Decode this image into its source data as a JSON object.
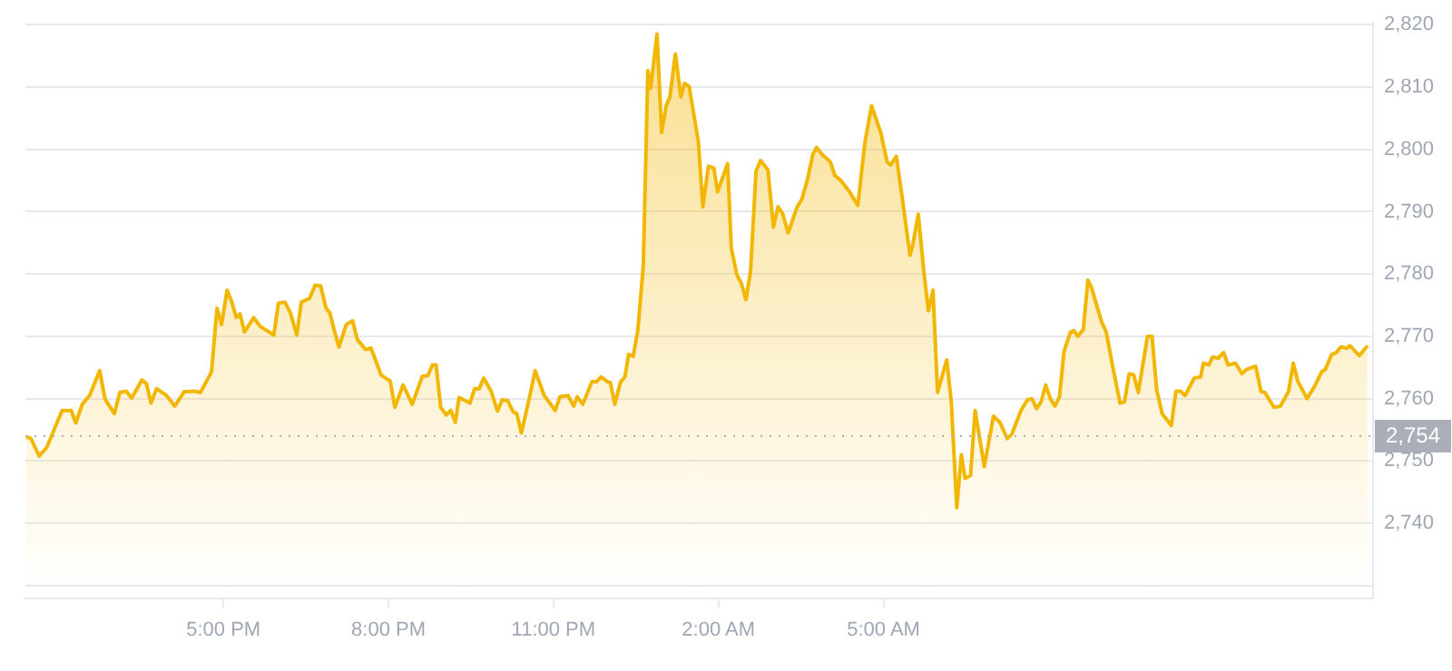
{
  "chart_data": {
    "type": "area",
    "x": [
      "--01-01T13:25",
      "--01-01T13:30",
      "--01-01T13:39",
      "--01-01T13:47",
      "--01-01T14:04",
      "--01-01T14:14",
      "--01-01T14:19",
      "--01-01T14:26",
      "--01-01T14:34",
      "--01-01T14:45",
      "--01-01T14:51",
      "--01-01T15:01",
      "--01-01T15:07",
      "--01-01T15:14",
      "--01-01T15:20",
      "--01-01T15:31",
      "--01-01T15:36",
      "--01-01T15:41",
      "--01-01T15:47",
      "--01-01T15:58",
      "--01-01T16:07",
      "--01-01T16:17",
      "--01-01T16:28",
      "--01-01T16:35",
      "--01-01T16:47",
      "--01-01T16:53",
      "--01-01T16:58",
      "--01-01T17:04",
      "--01-01T17:09",
      "--01-01T17:14",
      "--01-01T17:18",
      "--01-01T17:23",
      "--01-01T17:33",
      "--01-01T17:40",
      "--01-01T17:55",
      "--01-01T18:00",
      "--01-01T18:07",
      "--01-01T18:13",
      "--01-01T18:20",
      "--01-01T18:25",
      "--01-01T18:34",
      "--01-01T18:40",
      "--01-01T18:46",
      "--01-01T18:52",
      "--01-01T18:56",
      "--01-01T19:01",
      "--01-01T19:06",
      "--01-01T19:14",
      "--01-01T19:21",
      "--01-01T19:26",
      "--01-01T19:35",
      "--01-01T19:41",
      "--01-01T19:52",
      "--01-01T20:02",
      "--01-01T20:07",
      "--01-01T20:16",
      "--01-01T20:26",
      "--01-01T20:37",
      "--01-01T20:43",
      "--01-01T20:48",
      "--01-01T20:52",
      "--01-01T20:57",
      "--01-01T21:03",
      "--01-01T21:08",
      "--01-01T21:13",
      "--01-01T21:17",
      "--01-01T21:29",
      "--01-01T21:34",
      "--01-01T21:39",
      "--01-01T21:44",
      "--01-01T21:52",
      "--01-01T21:59",
      "--01-01T22:04",
      "--01-01T22:10",
      "--01-01T22:16",
      "--01-01T22:20",
      "--01-01T22:25",
      "--01-01T22:34",
      "--01-01T22:40",
      "--01-01T22:50",
      "--01-01T23:02",
      "--01-01T23:07",
      "--01-01T23:16",
      "--01-01T23:22",
      "--01-01T23:26",
      "--01-01T23:32",
      "--01-01T23:42",
      "--01-01T23:47",
      "--01-01T23:52",
      "--01-01T23:59",
      "--01-02T00:02",
      "--01-02T00:07",
      "--01-02T00:13",
      "--01-02T00:18",
      "--01-02T00:22",
      "--01-02T00:27",
      "--01-02T00:32",
      "--01-02T00:38",
      "--01-02T00:43",
      "--01-02T00:46",
      "--01-02T00:53",
      "--01-02T00:58",
      "--01-02T01:03",
      "--01-02T01:07",
      "--01-02T01:13",
      "--01-02T01:19",
      "--01-02T01:23",
      "--01-02T01:28",
      "--01-02T01:38",
      "--01-02T01:43",
      "--01-02T01:49",
      "--01-02T01:55",
      "--01-02T01:59",
      "--01-02T02:10",
      "--01-02T02:14",
      "--01-02T02:20",
      "--01-02T02:25",
      "--01-02T02:30",
      "--01-02T02:35",
      "--01-02T02:41",
      "--01-02T02:46",
      "--01-02T02:54",
      "--01-02T03:00",
      "--01-02T03:05",
      "--01-02T03:10",
      "--01-02T03:16",
      "--01-02T03:26",
      "--01-02T03:31",
      "--01-02T03:37",
      "--01-02T03:43",
      "--01-02T03:47",
      "--01-02T03:53",
      "--01-02T04:02",
      "--01-02T04:07",
      "--01-02T04:13",
      "--01-02T04:23",
      "--01-02T04:32",
      "--01-02T04:40",
      "--01-02T04:47",
      "--01-02T04:57",
      "--01-02T05:04",
      "--01-02T05:08",
      "--01-02T05:14",
      "--01-02T05:20",
      "--01-02T05:29",
      "--01-02T05:32",
      "--01-02T05:38",
      "--01-02T05:44",
      "--01-02T05:49",
      "--01-02T05:54",
      "--01-02T05:59",
      "--01-02T06:09",
      "--01-02T06:14",
      "--01-02T06:20",
      "--01-02T06:25",
      "--01-02T06:29",
      "--01-02T06:35",
      "--01-02T06:40",
      "--01-02T06:50",
      "--01-02T07:00",
      "--01-02T07:07",
      "--01-02T07:15",
      "--01-02T07:20",
      "--01-02T07:30",
      "--01-02T07:37",
      "--01-02T07:42",
      "--01-02T07:47",
      "--01-02T07:52",
      "--01-02T07:57",
      "--01-02T08:02",
      "--01-02T08:07",
      "--01-02T08:12",
      "--01-02T08:17",
      "--01-02T08:24",
      "--01-02T08:28",
      "--01-02T08:32",
      "--01-02T08:38",
      "--01-02T08:43",
      "--01-02T08:47",
      "--01-02T08:58",
      "--01-02T09:03",
      "--01-02T09:10",
      "--01-02T09:18",
      "--01-02T09:23",
      "--01-02T09:28",
      "--01-02T09:33",
      "--01-02T09:38",
      "--01-02T09:48",
      "--01-02T09:53",
      "--01-02T09:58",
      "--01-02T10:04",
      "--01-02T10:14",
      "--01-02T10:19",
      "--01-02T10:24",
      "--01-02T10:29",
      "--01-02T10:39",
      "--01-02T10:46",
      "--01-02T10:49",
      "--01-02T10:55",
      "--01-02T10:59",
      "--01-02T11:05",
      "--01-02T11:11",
      "--01-02T11:16",
      "--01-02T11:24",
      "--01-02T11:31",
      "--01-02T11:36",
      "--01-02T11:46",
      "--01-02T11:52",
      "--01-02T11:56",
      "--01-02T12:06",
      "--01-02T12:13",
      "--01-02T12:22",
      "--01-02T12:27",
      "--01-02T12:32",
      "--01-02T12:42",
      "--01-02T12:50",
      "--01-02T12:58",
      "--01-02T13:02",
      "--01-02T13:09",
      "--01-02T13:14",
      "--01-02T13:19",
      "--01-02T13:25",
      "--01-02T13:29",
      "--01-02T13:39",
      "--01-02T13:48"
    ],
    "series": [
      {
        "color": "#f2b705",
        "values": [
          2753.9,
          2753.6,
          2750.8,
          2752.1,
          2758.1,
          2758.1,
          2756.1,
          2759.1,
          2760.5,
          2764.5,
          2759.9,
          2757.6,
          2761.0,
          2761.2,
          2760.1,
          2763.0,
          2762.4,
          2759.3,
          2761.6,
          2760.5,
          2758.8,
          2761.1,
          2761.2,
          2761.0,
          2764.3,
          2774.5,
          2771.9,
          2777.4,
          2775.6,
          2773.0,
          2773.6,
          2770.7,
          2773.0,
          2771.6,
          2770.2,
          2775.3,
          2775.5,
          2773.8,
          2770.2,
          2775.5,
          2776.1,
          2778.2,
          2778.1,
          2774.5,
          2773.8,
          2770.9,
          2768.3,
          2771.9,
          2772.5,
          2769.5,
          2767.9,
          2768.1,
          2763.8,
          2762.8,
          2758.6,
          2762.2,
          2759.1,
          2763.6,
          2763.7,
          2765.4,
          2765.4,
          2758.6,
          2757.4,
          2758.1,
          2756.2,
          2760.2,
          2759.3,
          2761.6,
          2761.6,
          2763.3,
          2761.2,
          2758.0,
          2759.8,
          2759.7,
          2757.9,
          2757.6,
          2754.5,
          2760.3,
          2764.5,
          2760.5,
          2758.1,
          2760.3,
          2760.5,
          2758.8,
          2760.3,
          2759.1,
          2762.7,
          2762.7,
          2763.5,
          2762.7,
          2762.6,
          2759.1,
          2762.6,
          2763.5,
          2767.1,
          2766.8,
          2770.9,
          2781.3,
          2812.6,
          2809.8,
          2818.5,
          2802.7,
          2807.0,
          2808.4,
          2815.3,
          2808.4,
          2810.6,
          2810.1,
          2801.3,
          2790.8,
          2797.3,
          2797.0,
          2793.2,
          2797.7,
          2784.2,
          2779.9,
          2778.5,
          2775.9,
          2780.4,
          2796.5,
          2798.2,
          2796.7,
          2787.5,
          2790.8,
          2789.7,
          2786.6,
          2790.8,
          2792.0,
          2795.1,
          2799.2,
          2800.3,
          2799.2,
          2798.0,
          2795.8,
          2795.1,
          2793.2,
          2791.0,
          2801.3,
          2807.0,
          2802.7,
          2798.0,
          2797.5,
          2798.9,
          2792.7,
          2783.0,
          2784.7,
          2789.6,
          2780.4,
          2774.1,
          2777.4,
          2761.0,
          2766.2,
          2759.5,
          2742.5,
          2751.0,
          2747.2,
          2747.7,
          2758.1,
          2749.1,
          2757.2,
          2756.2,
          2753.6,
          2754.3,
          2758.1,
          2759.8,
          2760.0,
          2758.4,
          2759.5,
          2762.2,
          2760.0,
          2758.8,
          2760.3,
          2767.6,
          2770.7,
          2770.9,
          2770.0,
          2771.1,
          2779.0,
          2777.8,
          2772.3,
          2770.7,
          2765.2,
          2759.3,
          2759.5,
          2764.0,
          2763.8,
          2761.0,
          2770.0,
          2770.0,
          2761.4,
          2757.6,
          2755.7,
          2761.2,
          2761.2,
          2760.5,
          2763.3,
          2763.5,
          2765.7,
          2765.4,
          2766.7,
          2766.5,
          2767.4,
          2765.4,
          2765.7,
          2764.0,
          2764.7,
          2765.2,
          2761.1,
          2761.0,
          2758.6,
          2758.8,
          2761.2,
          2765.7,
          2762.8,
          2760.0,
          2761.9,
          2764.3,
          2764.7,
          2767.1,
          2767.4,
          2768.3,
          2768.1,
          2768.5,
          2766.9,
          2768.5
        ]
      }
    ],
    "xlim": [
      "--01-01T13:24",
      "--01-02T13:54"
    ],
    "xticks": [
      {
        "value": "--01-01T17:00",
        "label": "5:00 PM"
      },
      {
        "value": "--01-01T20:00",
        "label": "8:00 PM"
      },
      {
        "value": "--01-01T23:00",
        "label": "11:00 PM"
      },
      {
        "value": "--01-02T02:00",
        "label": "2:00 AM"
      },
      {
        "value": "--01-02T05:00",
        "label": "5:00 AM"
      }
    ],
    "ylim": [
      2728,
      2820.3
    ],
    "yticks": [
      {
        "value": 2730,
        "label": null
      },
      {
        "value": 2740,
        "label": "2,740"
      },
      {
        "value": 2750,
        "label": "2,750"
      },
      {
        "value": 2760,
        "label": "2,760"
      },
      {
        "value": 2770,
        "label": "2,770"
      },
      {
        "value": 2780,
        "label": "2,780"
      },
      {
        "value": 2790,
        "label": "2,790"
      },
      {
        "value": 2800,
        "label": "2,800"
      },
      {
        "value": 2810,
        "label": "2,810"
      },
      {
        "value": 2820,
        "label": "2,820"
      }
    ],
    "ref_lines": [
      {
        "axis": "y",
        "value": 2754,
        "label": "2,754",
        "color": "#a9aeb8",
        "line_style": "dotted"
      }
    ],
    "grid": "y",
    "legend": false,
    "marker": "none"
  }
}
